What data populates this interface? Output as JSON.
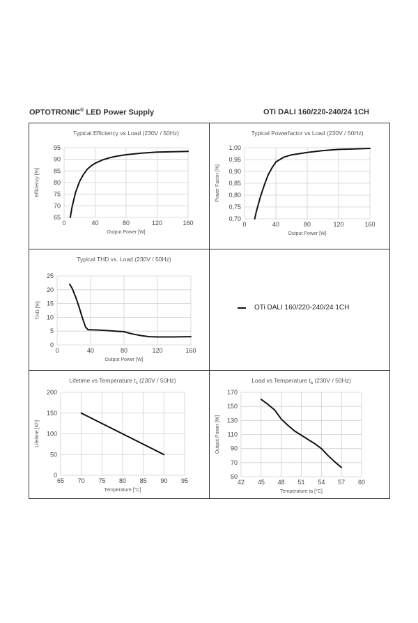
{
  "header": {
    "brand": "OPTOTRONIC",
    "brand_mark": "®",
    "brand_suffix": " LED Power Supply",
    "model": "OTi DALI 160/220-240/24 1CH"
  },
  "legend": {
    "label": "OTi DALI 160/220-240/24 1CH",
    "color": "#111111"
  },
  "chart_data": [
    {
      "id": "efficiency",
      "type": "line",
      "title": "Typical Efficiency vs Load (230V / 50Hz)",
      "xlabel": "Output Power [W]",
      "ylabel": "Efficiency [%]",
      "xlim": [
        0,
        160
      ],
      "ylim": [
        65,
        95
      ],
      "xticks": [
        0,
        40,
        80,
        120,
        160
      ],
      "yticks": [
        65,
        70,
        75,
        80,
        85,
        90,
        95
      ],
      "xtick_labels": [
        "0",
        "40",
        "80",
        "120",
        "160"
      ],
      "ytick_labels": [
        "65",
        "70",
        "75",
        "80",
        "85",
        "90",
        "95"
      ],
      "grid": true,
      "series": [
        {
          "x": [
            8,
            10,
            12,
            15,
            20,
            25,
            30,
            35,
            40,
            50,
            60,
            70,
            80,
            100,
            120,
            140,
            160
          ],
          "y": [
            65,
            69,
            72,
            76,
            80.5,
            83.5,
            85.8,
            87.2,
            88.3,
            89.8,
            90.8,
            91.5,
            92,
            92.7,
            93.1,
            93.3,
            93.4
          ]
        }
      ]
    },
    {
      "id": "powerfactor",
      "type": "line",
      "title": "Typical Powerfactor vs Load (230V / 50Hz)",
      "xlabel": "Output Power  [W]",
      "ylabel": "Power Factor [%]",
      "xlim": [
        0,
        160
      ],
      "ylim": [
        0.7,
        1.0
      ],
      "xticks": [
        0,
        40,
        80,
        120,
        160
      ],
      "yticks": [
        0.7,
        0.75,
        0.8,
        0.85,
        0.9,
        0.95,
        1.0
      ],
      "xtick_labels": [
        "0",
        "40",
        "80",
        "120",
        "160"
      ],
      "ytick_labels": [
        "0,70",
        "0,75",
        "0,80",
        "0,85",
        "0,90",
        "0,95",
        "1,00"
      ],
      "grid": true,
      "series": [
        {
          "x": [
            13,
            15,
            20,
            25,
            30,
            35,
            40,
            50,
            60,
            70,
            80,
            100,
            120,
            140,
            160
          ],
          "y": [
            0.7,
            0.73,
            0.79,
            0.84,
            0.885,
            0.915,
            0.94,
            0.96,
            0.97,
            0.975,
            0.98,
            0.988,
            0.993,
            0.995,
            0.997
          ]
        }
      ]
    },
    {
      "id": "thd",
      "type": "line",
      "title": "Typical THD vs. Load (230V / 50Hz)",
      "xlabel": "Output Power [W]",
      "ylabel": "THD [%]",
      "xlim": [
        0,
        160
      ],
      "ylim": [
        0,
        25
      ],
      "xticks": [
        0,
        40,
        80,
        120,
        160
      ],
      "yticks": [
        0,
        5,
        10,
        15,
        20,
        25
      ],
      "xtick_labels": [
        "0",
        "40",
        "80",
        "120",
        "160"
      ],
      "ytick_labels": [
        "0",
        "5",
        "10",
        "15",
        "20",
        "25"
      ],
      "grid": true,
      "series": [
        {
          "x": [
            15,
            18,
            22,
            26,
            30,
            34,
            37,
            40,
            50,
            60,
            70,
            80,
            85,
            90,
            100,
            110,
            120,
            140,
            160
          ],
          "y": [
            22,
            20.5,
            17.5,
            14,
            10,
            6.5,
            5.5,
            5.5,
            5.4,
            5.2,
            5,
            4.8,
            4.4,
            4,
            3.4,
            3,
            2.9,
            2.9,
            3
          ]
        }
      ]
    },
    {
      "id": "lifetime",
      "type": "line",
      "title_main": "Lifetime vs Temperature t",
      "title_sub": "c",
      "title_rest": " (230V / 50Hz)",
      "xlabel": "Temperature [°C]",
      "ylabel": "Lifetime [Kh]",
      "xlim": [
        65,
        95
      ],
      "ylim": [
        0,
        200
      ],
      "xticks": [
        65,
        70,
        75,
        80,
        85,
        90,
        95
      ],
      "yticks": [
        0,
        50,
        100,
        150,
        200
      ],
      "xtick_labels": [
        "65",
        "70",
        "75",
        "80",
        "85",
        "90",
        "95"
      ],
      "ytick_labels": [
        "0",
        "50",
        "100",
        "150",
        "200"
      ],
      "grid": true,
      "series": [
        {
          "x": [
            70,
            90
          ],
          "y": [
            150,
            50
          ]
        }
      ]
    },
    {
      "id": "loadtemp",
      "type": "line",
      "title_main": "Load vs Temperature t",
      "title_sub": "a",
      "title_rest": " (230V / 50Hz)",
      "xlabel": "Temperature ta [°C]",
      "ylabel": "Output Power [W]",
      "xlim": [
        42,
        60
      ],
      "ylim": [
        50,
        170
      ],
      "xticks": [
        42,
        45,
        48,
        51,
        54,
        57,
        60
      ],
      "yticks": [
        50,
        70,
        90,
        110,
        130,
        150,
        170
      ],
      "xtick_labels": [
        "42",
        "45",
        "48",
        "51",
        "54",
        "57",
        "60"
      ],
      "ytick_labels": [
        "50",
        "70",
        "90",
        "110",
        "130",
        "150",
        "170"
      ],
      "grid": true,
      "series": [
        {
          "x": [
            45,
            46,
            47,
            48,
            49,
            50,
            51,
            52,
            53,
            54,
            55,
            56,
            57
          ],
          "y": [
            160,
            153,
            145,
            132,
            123,
            115,
            109,
            103,
            97,
            90,
            80,
            71,
            63
          ]
        }
      ]
    }
  ]
}
